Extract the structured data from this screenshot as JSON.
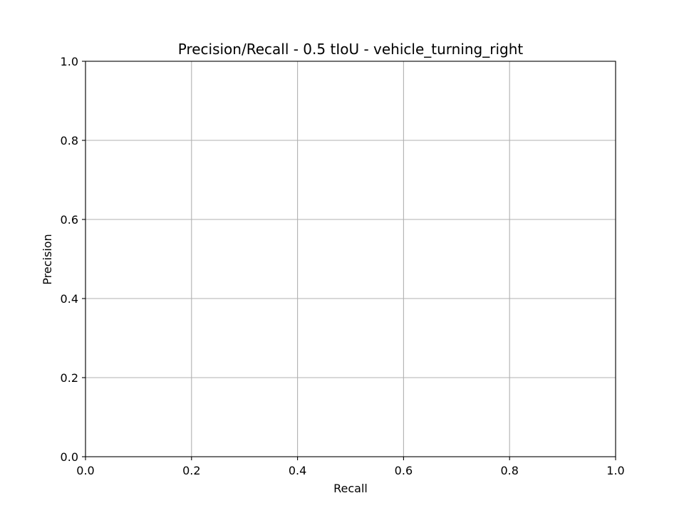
{
  "chart_data": {
    "type": "line",
    "title": "Precision/Recall - 0.5 tIoU - vehicle_turning_right",
    "xlabel": "Recall",
    "ylabel": "Precision",
    "xlim": [
      0.0,
      1.0
    ],
    "ylim": [
      0.0,
      1.0
    ],
    "xticks": [
      0.0,
      0.2,
      0.4,
      0.6,
      0.8,
      1.0
    ],
    "yticks": [
      0.0,
      0.2,
      0.4,
      0.6,
      0.8,
      1.0
    ],
    "xtick_labels": [
      "0.0",
      "0.2",
      "0.4",
      "0.6",
      "0.8",
      "1.0"
    ],
    "ytick_labels": [
      "0.0",
      "0.2",
      "0.4",
      "0.6",
      "0.8",
      "1.0"
    ],
    "grid": true,
    "series": [],
    "colors": {
      "grid": "#b0b0b0",
      "axes": "#000000",
      "background": "#ffffff"
    }
  }
}
